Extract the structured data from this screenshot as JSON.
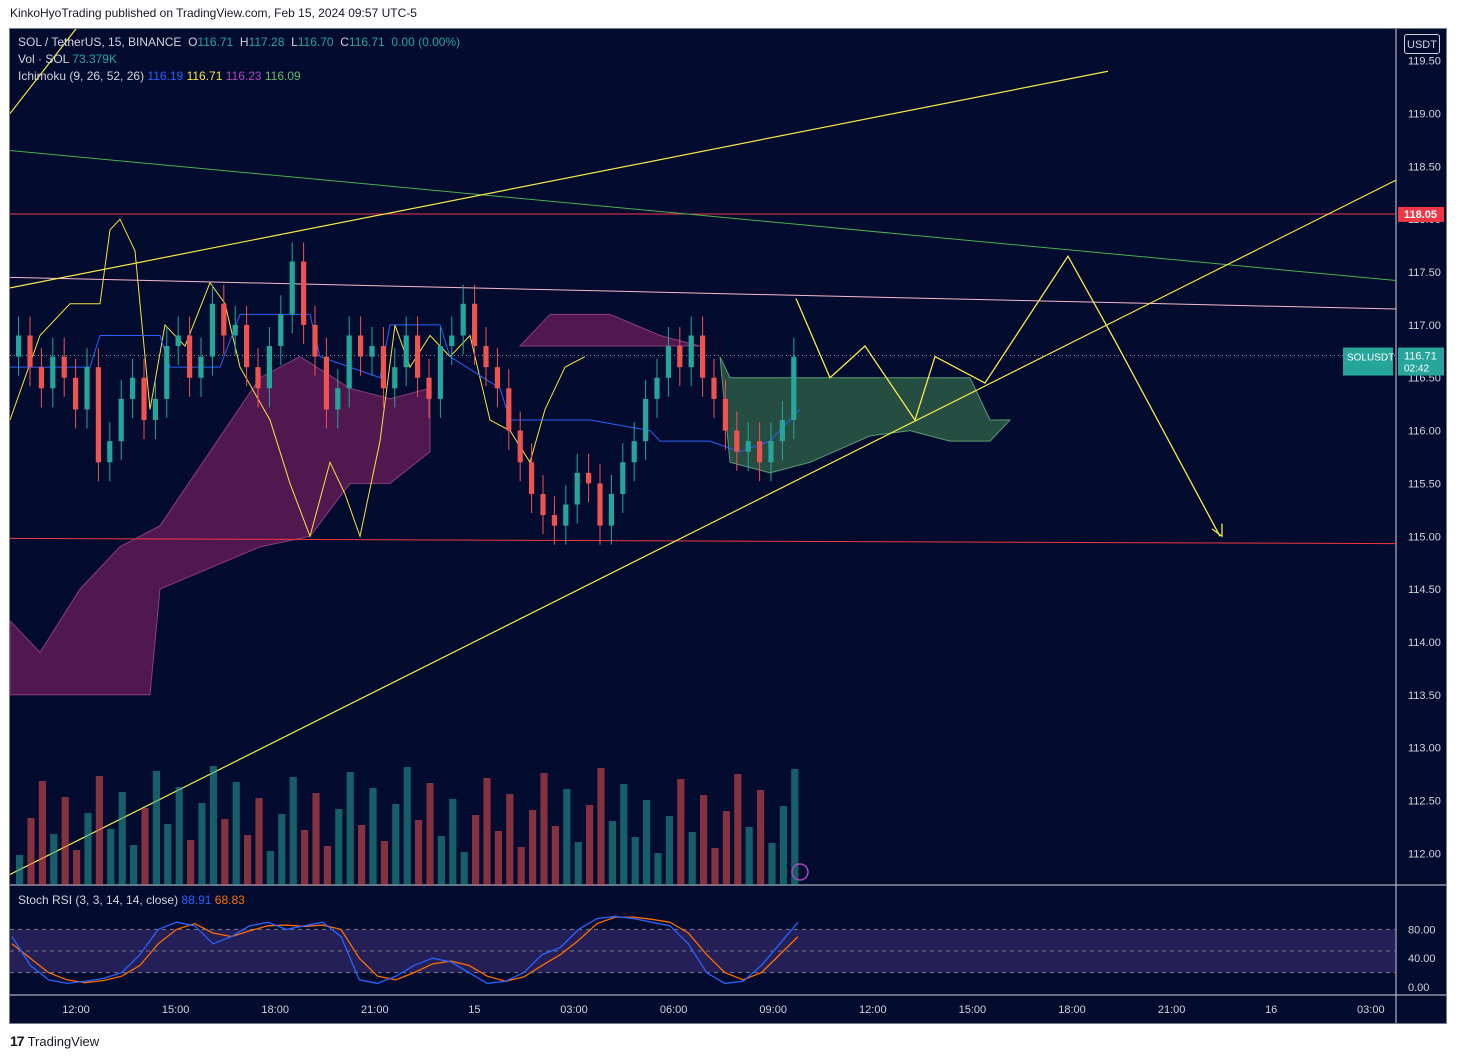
{
  "header": {
    "publisher": "KinkoHyoTrading published on TradingView.com, Feb 15, 2024 09:57 UTC-5"
  },
  "legend": {
    "symbol": "SOL / TetherUS, 15, BINANCE",
    "o_label": "O",
    "o": "116.71",
    "h_label": "H",
    "h": "117.28",
    "l_label": "L",
    "l": "116.70",
    "c_label": "C",
    "c": "116.71",
    "change": "0.00 (0.00%)",
    "vol_label": "Vol · SOL",
    "vol": "73.379K",
    "ichimoku_label": "Ichimoku (9, 26, 52, 26)",
    "ichimoku_values": [
      "116.19",
      "116.71",
      "116.23",
      "116.09"
    ],
    "stoch_label": "Stoch RSI (3, 3, 14, 14, close)",
    "stoch_values": [
      "88.91",
      "68.83"
    ]
  },
  "currency_button": "USDT",
  "footer": {
    "brand": "TradingView"
  },
  "colors": {
    "background": "#030b2e",
    "up": "#26a69a",
    "down": "#ef5350",
    "kumo_bear": "#6b1d5a",
    "kumo_bull": "#2e5e47",
    "tenkan": "#2962ff",
    "chikou": "#f7e23e",
    "annotation": "#f5e94a",
    "resistance_red": "#f23645",
    "trend_green": "#4caf50",
    "pink_line": "#f8bbd0",
    "stoch_k": "#2962ff",
    "stoch_d": "#ff6d00",
    "stoch_band": "#7e57c2"
  },
  "chart_data": {
    "type": "candlestick",
    "symbol": "SOLUSDT",
    "interval": "15",
    "last_price": "116.71",
    "countdown": "02:42",
    "price_axis": {
      "min": 111.7,
      "max": 119.8,
      "ticks": [
        "119.50",
        "119.00",
        "118.50",
        "118.00",
        "117.50",
        "117.00",
        "116.50",
        "116.00",
        "115.50",
        "115.00",
        "114.50",
        "114.00",
        "113.50",
        "113.00",
        "112.50",
        "112.00"
      ]
    },
    "marked_price": "118.05",
    "time_axis": [
      "12:00",
      "15:00",
      "18:00",
      "21:00",
      "15",
      "03:00",
      "06:00",
      "09:00",
      "12:00",
      "15:00",
      "18:00",
      "21:00",
      "16",
      "03:00"
    ],
    "stoch_axis": [
      "80.00",
      "40.00",
      "0.00"
    ],
    "candles_close": [
      116.9,
      116.6,
      116.4,
      116.7,
      116.5,
      116.2,
      116.6,
      115.7,
      115.9,
      116.3,
      116.5,
      116.1,
      116.3,
      116.8,
      116.9,
      116.5,
      116.7,
      117.2,
      116.9,
      117.0,
      116.6,
      116.4,
      116.8,
      117.1,
      117.6,
      117.0,
      116.7,
      116.2,
      116.4,
      116.9,
      116.7,
      116.8,
      116.4,
      116.6,
      116.9,
      116.5,
      116.3,
      116.8,
      116.9,
      117.2,
      116.8,
      116.6,
      116.4,
      116.0,
      115.7,
      115.4,
      115.2,
      115.1,
      115.3,
      115.6,
      115.5,
      115.1,
      115.4,
      115.7,
      115.9,
      116.3,
      116.5,
      116.8,
      116.6,
      116.9,
      116.5,
      116.3,
      116.0,
      115.8,
      115.9,
      115.7,
      115.9,
      116.1,
      116.7
    ]
  }
}
